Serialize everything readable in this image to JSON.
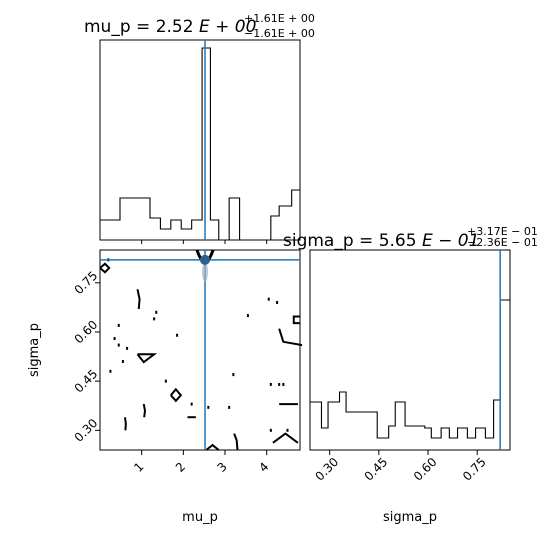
{
  "chart_data": [
    {
      "type": "step-histogram",
      "panel": "mu_p marginal",
      "title": {
        "param": "mu_p",
        "value": "2.52",
        "exp": "E + 00",
        "plus": "+1.61E + 00",
        "minus": "−1.61E + 00"
      },
      "xlim": [
        0.0,
        4.8
      ],
      "bin_edges": [
        0.0,
        0.48,
        1.2,
        1.45,
        1.7,
        1.95,
        2.2,
        2.45,
        2.65,
        2.85,
        3.1,
        3.35,
        3.8,
        4.1,
        4.3,
        4.6,
        4.8
      ],
      "counts": [
        1.0,
        2.1,
        1.1,
        0.55,
        1.0,
        0.55,
        1.0,
        9.6,
        1.0,
        0.0,
        2.1,
        0.0,
        0.0,
        1.2,
        1.7,
        2.5
      ],
      "truth": 2.52,
      "truth_color": "#1f77b4",
      "line_color": "#000000"
    },
    {
      "type": "2d-contour",
      "panel": "sigma_p vs mu_p",
      "xlabel": "mu_p",
      "ylabel": "sigma_p",
      "xlim": [
        0.0,
        4.8
      ],
      "ylim": [
        0.24,
        0.85
      ],
      "xticks": [
        1,
        2,
        3,
        4
      ],
      "yticks": [
        0.3,
        0.45,
        0.6,
        0.75
      ],
      "ytick_labels": [
        "0.30",
        "0.45",
        "0.60",
        "0.75"
      ],
      "truth": {
        "x": 2.52,
        "y": 0.82
      },
      "truth_color": "#1f77b4",
      "point_color": "#2c5f8a",
      "contours": [
        {
          "x": [
            0.0,
            0.12,
            0.22,
            0.12,
            0.0
          ],
          "y": [
            0.795,
            0.808,
            0.795,
            0.782,
            0.795
          ]
        },
        {
          "x": [
            0.9,
            1.1,
            1.3,
            1.05,
            0.9
          ],
          "y": [
            0.532,
            0.532,
            0.532,
            0.508,
            0.532
          ]
        },
        {
          "x": [
            1.7,
            1.82,
            1.94,
            1.82,
            1.7
          ],
          "y": [
            0.407,
            0.425,
            0.407,
            0.39,
            0.407
          ]
        },
        {
          "x": [
            2.55,
            2.7,
            2.85
          ],
          "y": [
            0.24,
            0.255,
            0.24
          ]
        },
        {
          "x": [
            4.15,
            4.45,
            4.75
          ],
          "y": [
            0.262,
            0.29,
            0.262
          ]
        },
        {
          "x": [
            4.8,
            4.65,
            4.65,
            4.8
          ],
          "y": [
            0.647,
            0.647,
            0.627,
            0.627
          ]
        },
        {
          "x": [
            0.9,
            0.95,
            0.93
          ],
          "y": [
            0.73,
            0.7,
            0.67
          ]
        },
        {
          "x": [
            1.05,
            1.08,
            1.06
          ],
          "y": [
            0.38,
            0.36,
            0.34
          ]
        },
        {
          "x": [
            0.6,
            0.62,
            0.61
          ],
          "y": [
            0.34,
            0.32,
            0.3
          ]
        },
        {
          "x": [
            3.22,
            3.28,
            3.3
          ],
          "y": [
            0.29,
            0.27,
            0.24
          ]
        },
        {
          "x": [
            4.3,
            4.75
          ],
          "y": [
            0.38,
            0.38
          ]
        },
        {
          "x": [
            4.85,
            4.4,
            4.3
          ],
          "y": [
            0.56,
            0.57,
            0.61
          ]
        },
        {
          "x": [
            2.1,
            2.3
          ],
          "y": [
            0.34,
            0.34
          ]
        }
      ],
      "specks": [
        {
          "x": 0.2,
          "y": 0.82
        },
        {
          "x": 0.45,
          "y": 0.62
        },
        {
          "x": 0.35,
          "y": 0.58
        },
        {
          "x": 0.45,
          "y": 0.56
        },
        {
          "x": 0.25,
          "y": 0.48
        },
        {
          "x": 0.55,
          "y": 0.51
        },
        {
          "x": 0.65,
          "y": 0.55
        },
        {
          "x": 1.3,
          "y": 0.64
        },
        {
          "x": 1.35,
          "y": 0.66
        },
        {
          "x": 1.58,
          "y": 0.45
        },
        {
          "x": 1.85,
          "y": 0.59
        },
        {
          "x": 2.2,
          "y": 0.38
        },
        {
          "x": 2.6,
          "y": 0.37
        },
        {
          "x": 3.1,
          "y": 0.37
        },
        {
          "x": 3.2,
          "y": 0.47
        },
        {
          "x": 3.55,
          "y": 0.65
        },
        {
          "x": 4.1,
          "y": 0.44
        },
        {
          "x": 4.3,
          "y": 0.44
        },
        {
          "x": 4.4,
          "y": 0.44
        },
        {
          "x": 4.25,
          "y": 0.69
        },
        {
          "x": 4.05,
          "y": 0.7
        },
        {
          "x": 4.5,
          "y": 0.3
        },
        {
          "x": 4.1,
          "y": 0.3
        }
      ]
    },
    {
      "type": "step-histogram",
      "panel": "sigma_p marginal",
      "title": {
        "param": "sigma_p",
        "value": "5.65",
        "exp": "E − 01",
        "plus": "+3.17E − 01",
        "minus": "−2.36E − 01"
      },
      "xlabel": "sigma_p",
      "xlim": [
        0.24,
        0.85
      ],
      "xticks": [
        0.3,
        0.45,
        0.6,
        0.75
      ],
      "xtick_labels": [
        "0.30",
        "0.45",
        "0.60",
        "0.75"
      ],
      "bin_edges": [
        0.24,
        0.275,
        0.295,
        0.33,
        0.35,
        0.385,
        0.415,
        0.445,
        0.48,
        0.5,
        0.53,
        0.56,
        0.59,
        0.61,
        0.64,
        0.665,
        0.69,
        0.72,
        0.745,
        0.775,
        0.8,
        0.82,
        0.835,
        0.85
      ],
      "counts": [
        2.4,
        1.1,
        2.4,
        2.9,
        1.9,
        1.9,
        1.9,
        0.6,
        1.2,
        2.4,
        1.2,
        1.2,
        1.1,
        0.6,
        1.1,
        0.6,
        1.1,
        0.6,
        1.1,
        0.6,
        2.5,
        7.5,
        7.5
      ],
      "truth": 0.82,
      "truth_color": "#1f77b4",
      "line_color": "#000000"
    }
  ]
}
